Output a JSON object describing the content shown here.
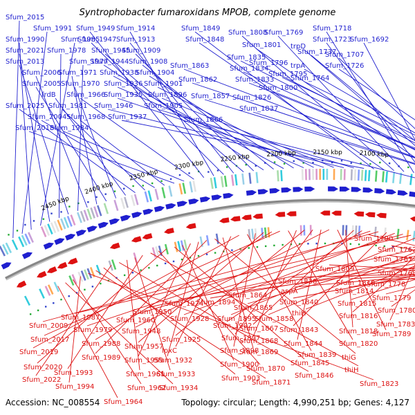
{
  "header": {
    "title": "Syntrophobacter fumaroxidans MPOB, complete genome"
  },
  "footer": {
    "accession": "Accession: NC_008554",
    "summary": "Topology: circular; Length: 4,990,251 bp; Genes: 4,127"
  },
  "colors": {
    "forward": "#1f1fcf",
    "reverse": "#dd1111",
    "backbone": "#888888"
  },
  "ticks": [
    "2100 kbp",
    "2150 kbp",
    "2200 kbp",
    "2250 kbp",
    "2300 kbp",
    "2350 kbp",
    "2400 kbp",
    "2450 kbp"
  ],
  "forward_labels": [
    "Sfum_2015",
    "Sfum_1991",
    "Sfum_1990",
    "Sfum_1985",
    "Sfum_2021",
    "Sfum_1978",
    "Sfum_2013",
    "Sfum_1977",
    "Sfum_2006",
    "Sfum_1971",
    "Sfum_2005",
    "Sfum_1970",
    "frdB",
    "Sfum_2025",
    "Sfum_1981",
    "Sfum_2004",
    "Sfum_1968",
    "Sfum_2018",
    "Sfum_1984",
    "Sfum_1966",
    "Sfum_1949",
    "Sfum_1914",
    "Sfum_1947",
    "Sfum_1913",
    "Sfum_1945",
    "Sfum_1909",
    "Sfum_1944",
    "Sfum_1908",
    "Sfum_1938",
    "Sfum_1904",
    "Sfum_1936",
    "Sfum_1901",
    "Sfum_1935",
    "Sfum_1896",
    "Sfum_1946",
    "Sfum_1905",
    "Sfum_1937",
    "Sfum_1849",
    "Sfum_1848",
    "Sfum_1808",
    "Sfum_1769",
    "Sfum_1718",
    "Sfum_1723",
    "Sfum_1692",
    "Sfum_1801",
    "trpD",
    "Sfum_1737",
    "Sfum_1707",
    "Sfum_1835",
    "Sfum_1863",
    "Sfum_1834",
    "Sfum_1796",
    "trpA",
    "Sfum_1726",
    "Sfum_1795",
    "Sfum_1862",
    "Sfum_1833",
    "Sfum_1764",
    "Sfum_1826",
    "Sfum_1800",
    "Sfum_1857",
    "Sfum_1837",
    "Sfum_1866"
  ],
  "reverse_labels": [
    "Sfum_1790",
    "Sfum_1762",
    "Sfum_1767",
    "Sfum_1768",
    "Sfum_1809",
    "Sfum_1778",
    "Sfum_1838",
    "Sfum_1810",
    "aspA",
    "Sfum_1814",
    "Sfum_1779",
    "Sfum_1840",
    "Sfum_1864",
    "Sfum_1815",
    "Sfum_1894",
    "Sfum_1924",
    "Sfum_1780",
    "thiH",
    "Sfum_1865",
    "Sfum_1950",
    "Sfum_1858",
    "Sfum_1816",
    "Sfum_1783",
    "Sfum_1895",
    "Sfum_1987",
    "Sfum_1960",
    "Sfum_1928",
    "Sfum_1843",
    "Sfum_2009",
    "Sfum_1979",
    "Sfum_1902",
    "Sfum_1867",
    "Sfum_1818",
    "Sfum_1789",
    "Sfum_1948",
    "Sfum_1844",
    "Sfum_1897",
    "Sfum_1925",
    "Sfum_1868",
    "Sfum_1820",
    "Sfum_2017",
    "Sfum_1988",
    "Sfum_1957",
    "Sfum_1898",
    "Sfum_1839",
    "Sfum_2019",
    "lpxC",
    "Sfum_1869",
    "thiG",
    "Sfum_1989",
    "Sfum_1932",
    "Sfum_1959",
    "Sfum_1900",
    "Sfum_1845",
    "Sfum_2020",
    "Sfum_1870",
    "thiH",
    "Sfum_1993",
    "Sfum_1933",
    "Sfum_1961",
    "Sfum_1846",
    "Sfum_2022",
    "Sfum_1903",
    "Sfum_1871",
    "Sfum_1823",
    "Sfum_1994",
    "Sfum_1962",
    "Sfum_1934",
    "Sfum_1964"
  ]
}
